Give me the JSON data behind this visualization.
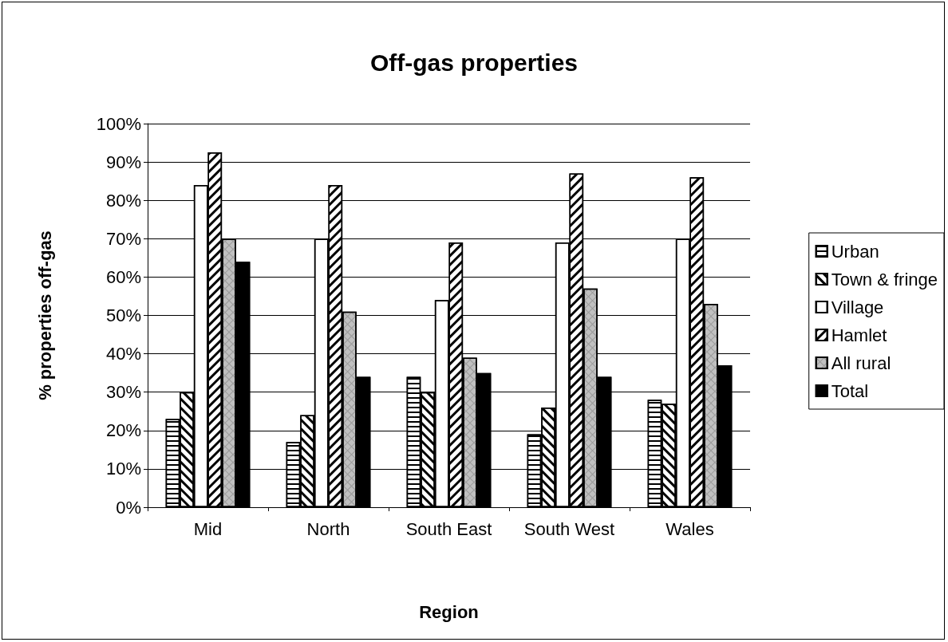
{
  "chart_data": {
    "type": "bar",
    "title": "Off-gas properties",
    "xlabel": "Region",
    "ylabel": "% properties off-gas",
    "categories": [
      "Mid",
      "North",
      "South East",
      "South West",
      "Wales"
    ],
    "series": [
      {
        "name": "Urban",
        "color": "#ffffff",
        "values": [
          23,
          17,
          34,
          19,
          28
        ]
      },
      {
        "name": "Town & fringe",
        "color": "#ffffff",
        "values": [
          30,
          24,
          30,
          26,
          27
        ]
      },
      {
        "name": "Village",
        "color": "#ffffff",
        "values": [
          84,
          70,
          54,
          69,
          70
        ]
      },
      {
        "name": "Hamlet",
        "color": "#ffffff",
        "values": [
          92.5,
          84,
          69,
          87,
          86
        ]
      },
      {
        "name": "All rural",
        "color": "#c0c0c0",
        "values": [
          70,
          51,
          39,
          57,
          53
        ]
      },
      {
        "name": "Total",
        "color": "#000000",
        "values": [
          64,
          34,
          35,
          34,
          37
        ]
      }
    ],
    "ylim": [
      0,
      100
    ],
    "yticks": [
      {
        "value": 0,
        "label": "0%"
      },
      {
        "value": 10,
        "label": "10%"
      },
      {
        "value": 20,
        "label": "20%"
      },
      {
        "value": 30,
        "label": "30%"
      },
      {
        "value": 40,
        "label": "40%"
      },
      {
        "value": 50,
        "label": "50%"
      },
      {
        "value": 60,
        "label": "60%"
      },
      {
        "value": 70,
        "label": "70%"
      },
      {
        "value": 80,
        "label": "80%"
      },
      {
        "value": 90,
        "label": "90%"
      },
      {
        "value": 100,
        "label": "100%"
      }
    ],
    "grid": "y",
    "legend": "right"
  }
}
